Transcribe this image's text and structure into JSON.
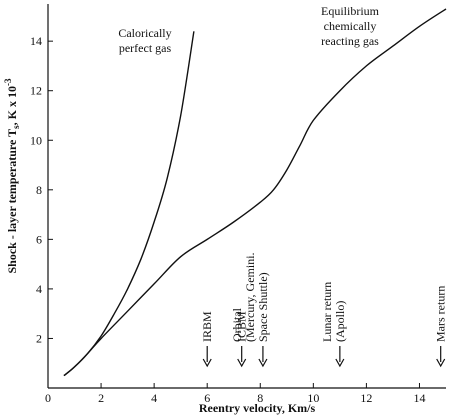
{
  "chart_data": {
    "type": "line",
    "title": "",
    "xlabel": "Reentry velocity, Km/s",
    "ylabel_main": "Shock - layer temperature T",
    "ylabel_sub": "s",
    "ylabel_tail": ", K x 10",
    "ylabel_sup": "-3",
    "xlim": [
      0,
      15
    ],
    "ylim": [
      0,
      15.5
    ],
    "xticks": [
      0,
      2,
      4,
      6,
      8,
      10,
      12,
      14
    ],
    "yticks": [
      2,
      4,
      6,
      8,
      10,
      12,
      14
    ],
    "grid": false,
    "series": [
      {
        "name": "Calorically perfect gas",
        "label_lines": [
          "Calorically",
          "perfect gas"
        ],
        "x": [
          0.6,
          1.0,
          1.5,
          2.0,
          2.5,
          3.0,
          3.5,
          4.0,
          4.5,
          5.0,
          5.5
        ],
        "y": [
          0.5,
          0.85,
          1.4,
          2.1,
          3.0,
          4.0,
          5.2,
          6.7,
          8.5,
          11.0,
          14.4
        ]
      },
      {
        "name": "Equilibrium chemically reacting gas",
        "label_lines": [
          "Equilibrium",
          "chemically",
          "reacting gas"
        ],
        "x": [
          0.6,
          1.0,
          1.5,
          2.0,
          3.0,
          4.0,
          5.0,
          6.0,
          7.0,
          8.0,
          8.5,
          9.0,
          9.5,
          10.0,
          11.0,
          12.0,
          13.0,
          14.0,
          15.0
        ],
        "y": [
          0.5,
          0.85,
          1.4,
          2.0,
          3.1,
          4.2,
          5.3,
          6.0,
          6.7,
          7.5,
          8.0,
          8.8,
          9.8,
          10.8,
          12.0,
          13.0,
          13.8,
          14.6,
          15.3
        ]
      }
    ],
    "markers": [
      {
        "label": "IRBM",
        "x": 6.0,
        "lines": [
          "IRBM"
        ]
      },
      {
        "label": "ICBM",
        "x": 7.3,
        "lines": [
          "ICBM"
        ]
      },
      {
        "label": "Orbital (Mercury, Gemini, Space Shuttle)",
        "x": 8.1,
        "lines": [
          "Orbital",
          "(Mercury, Gemini.",
          "Space Shuttle)"
        ]
      },
      {
        "label": "Lunar return (Apollo)",
        "x": 11.0,
        "lines": [
          "Lunar return",
          "(Apollo)"
        ]
      },
      {
        "label": "Mars return",
        "x": 14.8,
        "lines": [
          "Mars return"
        ]
      }
    ]
  }
}
